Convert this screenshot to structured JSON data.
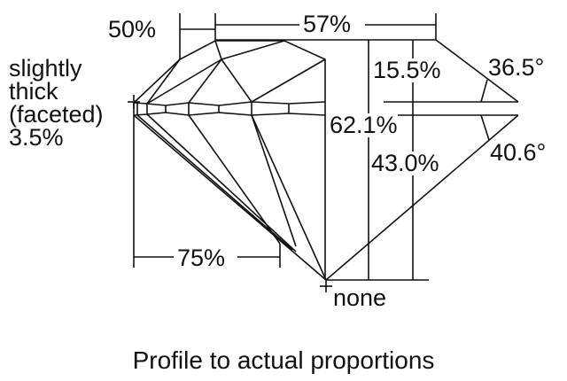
{
  "labels": {
    "crown_height_ratio": "50%",
    "table": "57%",
    "crown_height": "15.5%",
    "crown_angle": "36.5°",
    "total_depth": "62.1%",
    "pavilion_depth": "43.0%",
    "pavilion_angle": "40.6°",
    "lower_half": "75%",
    "culet": "none",
    "girdle": [
      "slightly",
      "thick",
      "(faceted)",
      "3.5%"
    ]
  },
  "caption": "Profile to actual proportions",
  "colors": {
    "line": "#111111",
    "background": "#ffffff"
  }
}
